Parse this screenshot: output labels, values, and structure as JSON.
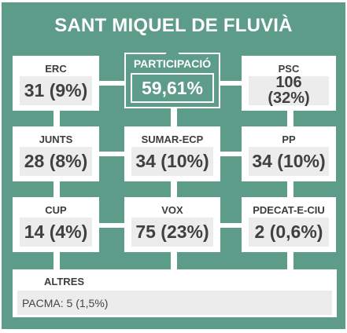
{
  "title": "SANT MIQUEL DE FLUVIÀ",
  "participation": {
    "label": "PARTICIPACIÓ",
    "value": "59,61%"
  },
  "parties": {
    "erc": {
      "label": "ERC",
      "value": "31 (9%)"
    },
    "psc": {
      "label": "PSC",
      "line1": "106",
      "line2": "(32%)"
    },
    "junts": {
      "label": "JUNTS",
      "value": "28 (8%)"
    },
    "sumar": {
      "label": "SUMAR-ECP",
      "value": "34 (10%)"
    },
    "pp": {
      "label": "PP",
      "value": "34 (10%)"
    },
    "cup": {
      "label": "CUP",
      "value": "14 (4%)"
    },
    "vox": {
      "label": "VOX",
      "value": "75 (23%)"
    },
    "pdecat": {
      "label": "PDECAT-E-CIU",
      "value": "2 (0,6%)"
    }
  },
  "others": {
    "label": "ALTRES",
    "value": "PACMA: 5 (1,5%)"
  },
  "colors": {
    "panel": "#5e9c8a",
    "card": "#ffffff",
    "value_box": "#ececec",
    "text": "#404040"
  }
}
